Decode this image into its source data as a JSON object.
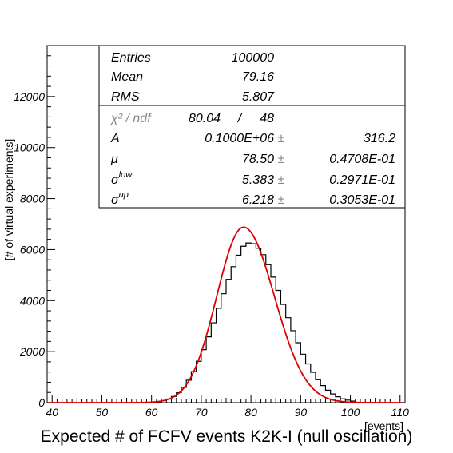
{
  "caption": "Expected # of FCFV events K2K-I (null oscillation)",
  "chart_data": {
    "type": "bar",
    "title": "Expected # of FCFV events K2K-I (null oscillation)",
    "xlabel": "[events]",
    "ylabel": "[# of virtual experiments]",
    "xlim": [
      39,
      111
    ],
    "ylim": [
      0,
      14000
    ],
    "x_ticks": [
      "40",
      "50",
      "60",
      "70",
      "80",
      "90",
      "100",
      "110"
    ],
    "y_ticks": [
      "0",
      "2000",
      "4000",
      "6000",
      "8000",
      "10000",
      "12000"
    ],
    "bin_width": 1,
    "bins_x": [
      60,
      61,
      62,
      63,
      64,
      65,
      66,
      67,
      68,
      69,
      70,
      71,
      72,
      73,
      74,
      75,
      76,
      77,
      78,
      79,
      80,
      81,
      82,
      83,
      84,
      85,
      86,
      87,
      88,
      89,
      90,
      91,
      92,
      93,
      94,
      95,
      96,
      97,
      98,
      99,
      100
    ],
    "bins_y": [
      22,
      43,
      80,
      140,
      240,
      390,
      600,
      880,
      1220,
      1620,
      2080,
      2580,
      3130,
      3700,
      4270,
      4830,
      5330,
      5780,
      6130,
      6260,
      6230,
      6050,
      5800,
      5410,
      4920,
      4400,
      3850,
      3330,
      2820,
      2350,
      1900,
      1520,
      1190,
      900,
      670,
      490,
      340,
      230,
      150,
      100,
      60
    ],
    "fit": {
      "color": "#dd0000",
      "A": 100000,
      "mu": 78.5,
      "sigma_low": 5.383,
      "sigma_up": 6.218
    },
    "stats": {
      "entries_label": "Entries",
      "entries_value": "100000",
      "mean_label": "Mean",
      "mean_value": "79.16",
      "rms_label": "RMS",
      "rms_value": "5.807",
      "chi2_label": "χ² / ndf",
      "chi2_value": "80.04",
      "chi2_sep": "/",
      "ndf_value": "48",
      "a_label": "A",
      "a_value": "0.1000E+06",
      "a_pm": "±",
      "a_err": "316.2",
      "mu_label": "μ",
      "mu_value": "78.50",
      "mu_pm": "±",
      "mu_err": "0.4708E-01",
      "slow_label": "σ",
      "slow_sup": "low",
      "slow_value": "5.383",
      "slow_pm": "±",
      "slow_err": "0.2971E-01",
      "sup_label": "σ",
      "sup_sup": "up",
      "sup_value": "6.218",
      "sup_pm": "±",
      "sup_err": "0.3053E-01"
    }
  }
}
